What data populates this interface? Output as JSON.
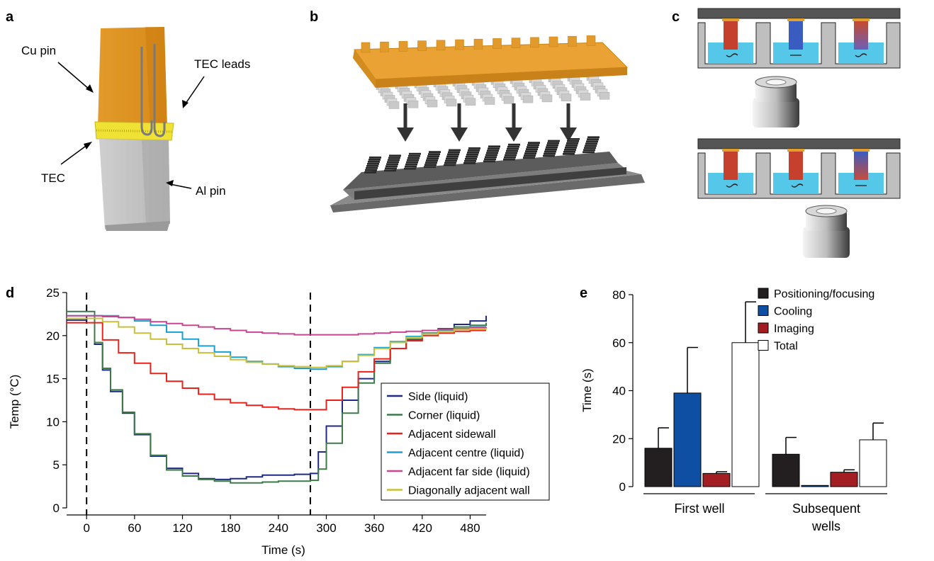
{
  "panel_labels": {
    "a": "a",
    "b": "b",
    "c": "c",
    "d": "d",
    "e": "e"
  },
  "panel_a": {
    "cu_pin": "Cu pin",
    "tec_leads": "TEC leads",
    "tec": "TEC",
    "al_pin": "Al pin"
  },
  "colors": {
    "side_liquid": "#1f2a85",
    "corner_liquid": "#3d7a4a",
    "adjacent_sidewall": "#e8231c",
    "adjacent_centre": "#1aa0d0",
    "adjacent_far_side": "#c8468f",
    "diagonal_wall": "#c9bf3a",
    "positioning": "#231f20",
    "cooling": "#0f4fa3",
    "imaging": "#a31e22",
    "total": "#ffffff",
    "copper": "#e8a030",
    "aluminium": "#c8c8c8",
    "tec_yellow": "#f2e33a"
  },
  "chart_data": [
    {
      "type": "line",
      "xlabel": "Time (s)",
      "ylabel": "Temp (°C)",
      "xlim": [
        -25,
        500
      ],
      "ylim": [
        0,
        25
      ],
      "xticks": [
        "0",
        "60",
        "120",
        "180",
        "240",
        "300",
        "360",
        "420",
        "480"
      ],
      "yticks": [
        "0",
        "5",
        "10",
        "15",
        "20",
        "25"
      ],
      "vlines": [
        0,
        280
      ],
      "legend_position": "lower-right",
      "series": [
        {
          "name": "Side (liquid)",
          "color_key": "side_liquid",
          "x": [
            -25,
            0,
            10,
            20,
            30,
            45,
            60,
            80,
            100,
            120,
            140,
            160,
            180,
            200,
            220,
            240,
            260,
            280,
            290,
            300,
            320,
            340,
            360,
            380,
            400,
            420,
            440,
            460,
            480,
            500
          ],
          "y": [
            21.8,
            22,
            19,
            16,
            13.5,
            11,
            8.5,
            6,
            4.6,
            4,
            3.4,
            3.3,
            3.4,
            3.6,
            3.8,
            3.8,
            3.9,
            4,
            6.5,
            9.5,
            12.5,
            15,
            17,
            18.5,
            19.5,
            20.3,
            20.8,
            21.3,
            21.7,
            22.3
          ]
        },
        {
          "name": "Corner (liquid)",
          "color_key": "corner_liquid",
          "x": [
            -25,
            0,
            10,
            20,
            30,
            45,
            60,
            80,
            100,
            120,
            140,
            160,
            180,
            200,
            220,
            240,
            260,
            280,
            290,
            300,
            320,
            340,
            360,
            380,
            400,
            420,
            440,
            460,
            480,
            500
          ],
          "y": [
            22.8,
            22.8,
            19.2,
            16.2,
            13.7,
            11.1,
            8.6,
            6.1,
            4.4,
            3.7,
            3.3,
            3.1,
            2.9,
            2.9,
            3.0,
            3.1,
            3.1,
            3.2,
            4.5,
            7.5,
            11,
            14.5,
            16.8,
            18.5,
            19.6,
            20.3,
            20.7,
            21,
            21.2,
            21.5
          ]
        },
        {
          "name": "Adjacent sidewall",
          "color_key": "adjacent_sidewall",
          "x": [
            -25,
            0,
            20,
            40,
            60,
            80,
            100,
            120,
            140,
            160,
            180,
            200,
            220,
            240,
            260,
            280,
            300,
            320,
            340,
            360,
            380,
            400,
            420,
            440,
            460,
            480,
            500
          ],
          "y": [
            21.5,
            21.5,
            19.5,
            18,
            16.8,
            15.6,
            14.7,
            13.9,
            13.2,
            12.6,
            12.2,
            11.9,
            11.7,
            11.5,
            11.4,
            11.4,
            12.5,
            14,
            15.8,
            17.3,
            18.5,
            19.4,
            20.0,
            20.3,
            20.5,
            20.6,
            20.6
          ]
        },
        {
          "name": "Adjacent centre (liquid)",
          "color_key": "adjacent_centre",
          "x": [
            -25,
            0,
            20,
            40,
            60,
            80,
            100,
            120,
            140,
            160,
            180,
            200,
            220,
            240,
            260,
            280,
            300,
            320,
            340,
            360,
            380,
            400,
            420,
            440,
            460,
            480,
            500
          ],
          "y": [
            22.3,
            22.3,
            22.3,
            22.1,
            21.7,
            21.2,
            20.4,
            19.6,
            18.8,
            18.1,
            17.5,
            17,
            16.7,
            16.4,
            16.2,
            16.1,
            16.4,
            17,
            17.8,
            18.6,
            19.3,
            19.9,
            20.3,
            20.6,
            20.8,
            21,
            21
          ]
        },
        {
          "name": "Adjacent far side (liquid)",
          "color_key": "adjacent_far_side",
          "x": [
            -25,
            0,
            20,
            40,
            60,
            80,
            100,
            120,
            140,
            160,
            180,
            200,
            220,
            240,
            260,
            280,
            300,
            320,
            340,
            360,
            380,
            400,
            420,
            440,
            460,
            480,
            500
          ],
          "y": [
            22.3,
            22.3,
            22.2,
            22.1,
            21.9,
            21.6,
            21.4,
            21.2,
            21,
            20.8,
            20.6,
            20.4,
            20.3,
            20.2,
            20.1,
            20.1,
            20.1,
            20.1,
            20.2,
            20.3,
            20.4,
            20.5,
            20.6,
            20.7,
            20.8,
            20.9,
            21
          ]
        },
        {
          "name": "Diagonally adjacent wall",
          "color_key": "diagonal_wall",
          "x": [
            -25,
            0,
            20,
            40,
            60,
            80,
            100,
            120,
            140,
            160,
            180,
            200,
            220,
            240,
            260,
            280,
            300,
            320,
            340,
            360,
            380,
            400,
            420,
            440,
            460,
            480,
            500
          ],
          "y": [
            22,
            22,
            21.6,
            21,
            20.3,
            19.6,
            19,
            18.5,
            18,
            17.6,
            17.2,
            16.9,
            16.7,
            16.5,
            16.4,
            16.3,
            16.5,
            17,
            17.7,
            18.5,
            19.2,
            19.8,
            20.2,
            20.5,
            20.7,
            20.8,
            20.9
          ]
        }
      ]
    },
    {
      "type": "bar",
      "ylabel": "Time (s)",
      "ylim": [
        0,
        80
      ],
      "yticks": [
        "0",
        "20",
        "40",
        "60",
        "80"
      ],
      "groups": [
        "First well",
        "Subsequent wells"
      ],
      "legend_position": "top-right",
      "series": [
        {
          "name": "Positioning/focusing",
          "color_key": "positioning",
          "values": [
            16,
            13.5
          ],
          "errors": [
            8.5,
            7
          ]
        },
        {
          "name": "Cooling",
          "color_key": "cooling",
          "values": [
            39,
            0.5
          ],
          "errors": [
            19,
            0
          ]
        },
        {
          "name": "Imaging",
          "color_key": "imaging",
          "values": [
            5.5,
            6
          ],
          "errors": [
            0.7,
            1
          ]
        },
        {
          "name": "Total",
          "color_key": "total",
          "values": [
            60,
            19.5
          ],
          "errors": [
            17,
            7
          ]
        }
      ]
    }
  ]
}
